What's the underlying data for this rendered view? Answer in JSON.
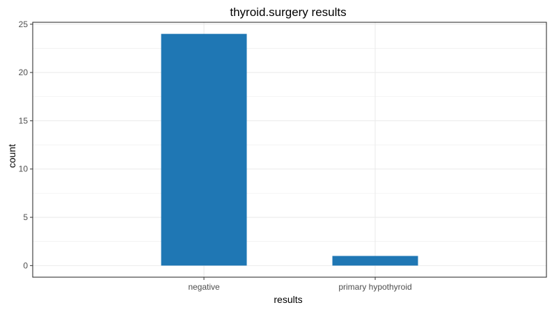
{
  "chart_data": {
    "type": "bar",
    "title": "thyroid.surgery results",
    "xlabel": "results",
    "ylabel": "count",
    "categories": [
      "negative",
      "primary hypothyroid"
    ],
    "values": [
      24,
      1
    ],
    "ylim": [
      -1.2,
      25.2
    ],
    "yticks": [
      0,
      5,
      10,
      15,
      20,
      25
    ],
    "grid": true,
    "bar_color": "#1f77b4",
    "panel_border_color": "#333333",
    "grid_color": "#ebebeb"
  }
}
